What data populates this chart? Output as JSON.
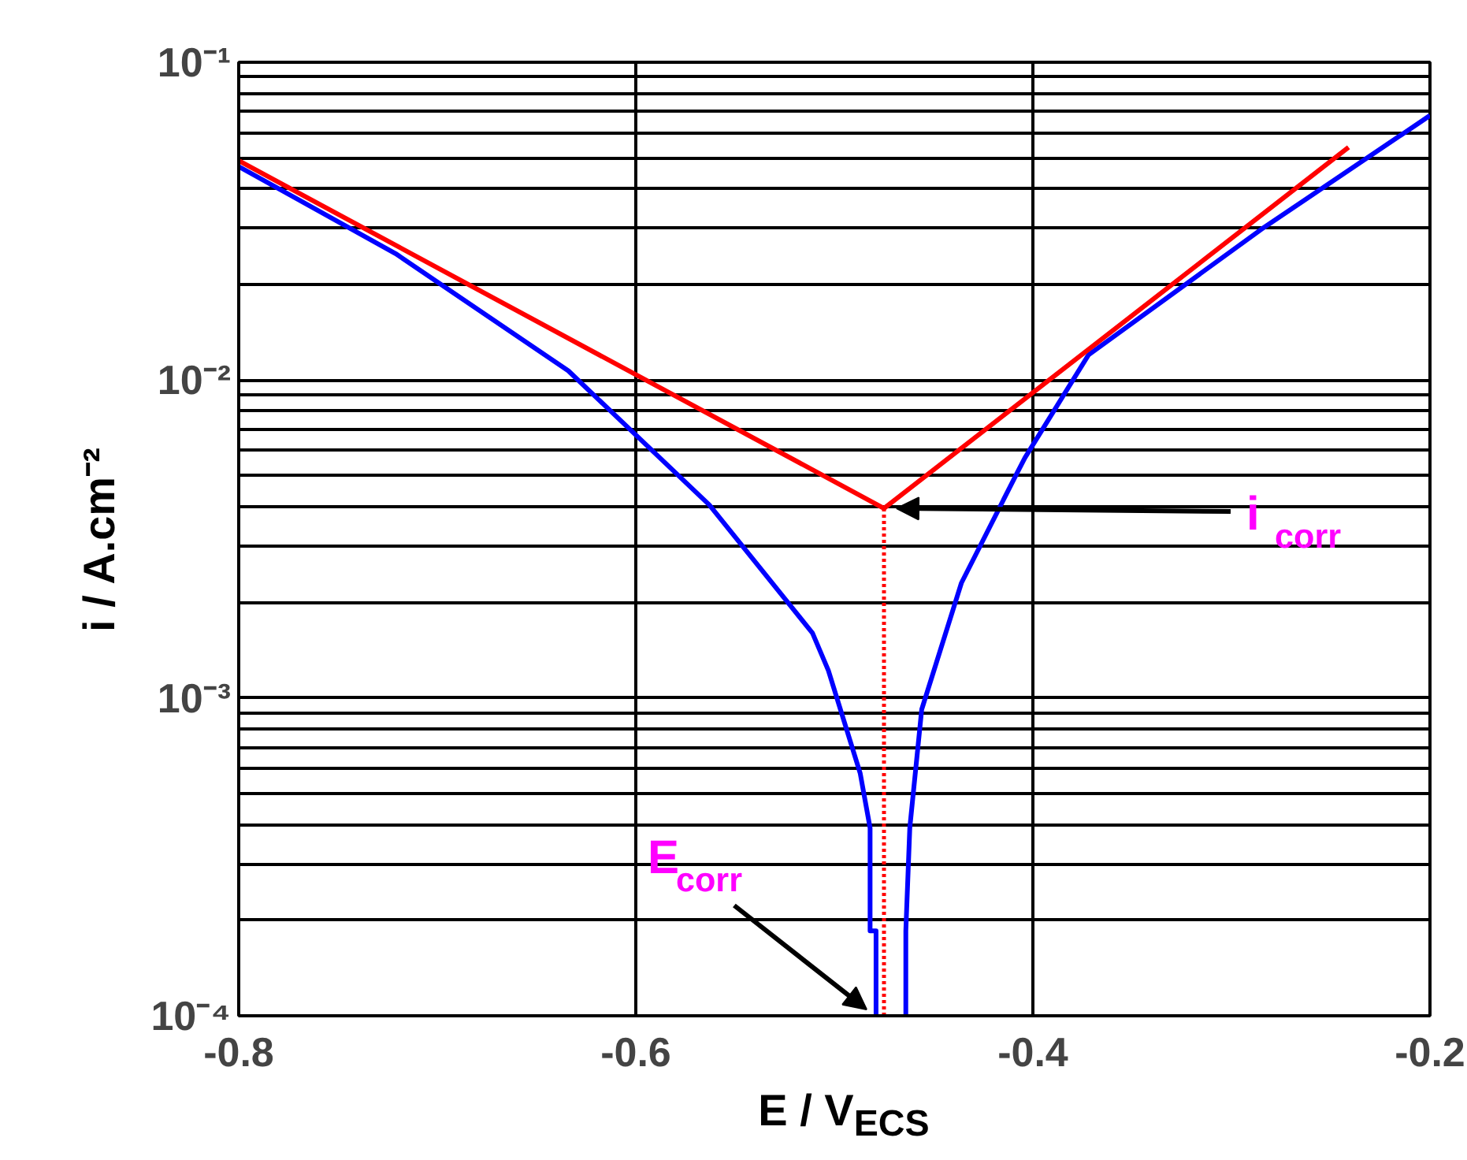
{
  "chart_data": {
    "type": "line",
    "xlabel": "E / V$_{ECS}$",
    "ylabel": "i / A.cm⁻²",
    "log": "y",
    "grid": true,
    "marker": "none",
    "xlim": [
      -0.8,
      -0.2
    ],
    "xticks": [
      -0.8,
      -0.6,
      -0.4,
      -0.2
    ],
    "ylim": [
      0.0001,
      0.1
    ],
    "yticks": [
      {
        "value": 0.0001,
        "label": "10⁻⁴"
      },
      {
        "value": 0.0002,
        "label": null
      },
      {
        "value": 0.0003,
        "label": null
      },
      {
        "value": 0.0004,
        "label": null
      },
      {
        "value": 0.0005,
        "label": null
      },
      {
        "value": 0.0006,
        "label": null
      },
      {
        "value": 0.0007,
        "label": null
      },
      {
        "value": 0.0008,
        "label": null
      },
      {
        "value": 0.0009,
        "label": null
      },
      {
        "value": 0.001,
        "label": "10⁻³"
      },
      {
        "value": 0.002,
        "label": null
      },
      {
        "value": 0.003,
        "label": null
      },
      {
        "value": 0.004,
        "label": null
      },
      {
        "value": 0.005,
        "label": null
      },
      {
        "value": 0.006,
        "label": null
      },
      {
        "value": 0.007,
        "label": null
      },
      {
        "value": 0.008,
        "label": null
      },
      {
        "value": 0.009,
        "label": null
      },
      {
        "value": 0.01,
        "label": "10⁻²"
      },
      {
        "value": 0.02,
        "label": null
      },
      {
        "value": 0.03,
        "label": null
      },
      {
        "value": 0.04,
        "label": null
      },
      {
        "value": 0.05,
        "label": null
      },
      {
        "value": 0.06,
        "label": null
      },
      {
        "value": 0.07,
        "label": null
      },
      {
        "value": 0.08,
        "label": null
      },
      {
        "value": 0.09,
        "label": null
      },
      {
        "value": 0.1,
        "label": "10⁻¹"
      }
    ],
    "series": [
      {
        "color": "#0000ff",
        "line_style": "solid",
        "x": [
          -0.8,
          -0.721,
          -0.634,
          -0.563,
          -0.511,
          -0.503,
          -0.487,
          -0.482,
          -0.482,
          -0.479,
          -0.479
        ],
        "values": [
          0.047,
          0.025,
          0.0107,
          0.00405,
          0.0016,
          0.00122,
          0.00058,
          0.00039,
          0.000185,
          0.000185,
          0.0001
        ]
      },
      {
        "color": "#0000ff",
        "line_style": "solid",
        "x": [
          -0.464,
          -0.464,
          -0.462,
          -0.456,
          -0.436,
          -0.408,
          -0.404,
          -0.372,
          -0.285,
          -0.2
        ],
        "values": [
          0.0001,
          0.000185,
          0.00039,
          0.00092,
          0.0023,
          0.0051,
          0.0057,
          0.012,
          0.0298,
          0.068
        ]
      },
      {
        "color": "#ff0000",
        "line_style": "solid",
        "x": [
          -0.8,
          -0.475,
          -0.241
        ],
        "values": [
          0.049,
          0.00395,
          0.054
        ]
      },
      {
        "color": "#ff0000",
        "line_style": "dotted",
        "x": [
          -0.475,
          -0.475
        ],
        "values": [
          0.0001,
          0.00395
        ]
      }
    ],
    "annotations": [
      {
        "text": "i$_{corr}$",
        "x": -0.475,
        "y": 0.00395
      },
      {
        "text": "E$_{corr}$",
        "x": -0.479,
        "y": 0.0001
      }
    ]
  }
}
